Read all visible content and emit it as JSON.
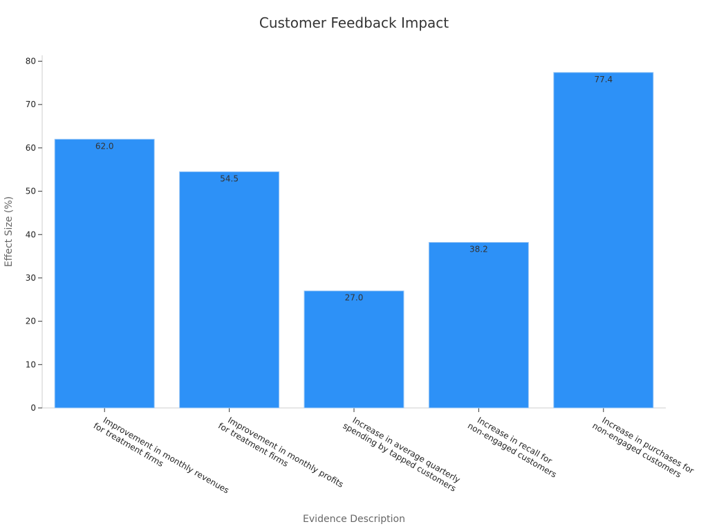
{
  "chart_data": {
    "type": "bar",
    "title": "Customer Feedback Impact",
    "xlabel": "Evidence Description",
    "ylabel": "Effect Size (%)",
    "ylim": [
      0,
      80
    ],
    "yticks": [
      0,
      10,
      20,
      30,
      40,
      50,
      60,
      70,
      80
    ],
    "categories": [
      [
        "Improvement in monthly revenues",
        "for treatment firms"
      ],
      [
        "Improvement in monthly profits",
        "for treatment firms"
      ],
      [
        "Increase in average quarterly",
        "spending by tapped customers"
      ],
      [
        "Increase in recall for",
        "non-engaged customers"
      ],
      [
        "Increase in purchases for",
        "non-engaged customers"
      ]
    ],
    "values": [
      62.0,
      54.5,
      27.0,
      38.2,
      77.4
    ],
    "value_labels": [
      "62.0",
      "54.5",
      "27.0",
      "38.2",
      "77.4"
    ],
    "bar_color": "#2d91f7",
    "grid": false,
    "legend": "none"
  }
}
